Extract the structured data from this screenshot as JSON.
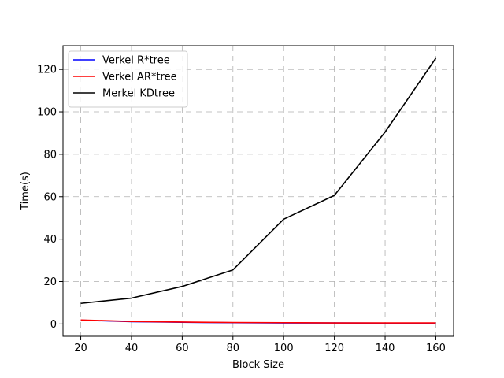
{
  "chart_data": {
    "type": "line",
    "title": "",
    "xlabel": "Block Size",
    "ylabel": "Time(s)",
    "x": [
      20,
      40,
      60,
      80,
      100,
      120,
      140,
      160
    ],
    "xlim": [
      13,
      167
    ],
    "ylim": [
      -5.8,
      131.2
    ],
    "xticks": [
      20,
      40,
      60,
      80,
      100,
      120,
      140,
      160
    ],
    "yticks": [
      0,
      20,
      40,
      60,
      80,
      100,
      120
    ],
    "grid": true,
    "legend_position": "top-left",
    "series": [
      {
        "name": "Verkel R*tree",
        "color": "#0000ff",
        "values": [
          1.8,
          1.1,
          0.8,
          0.6,
          0.5,
          0.5,
          0.4,
          0.4
        ]
      },
      {
        "name": "Verkel AR*tree",
        "color": "#ff0000",
        "values": [
          1.9,
          1.2,
          0.9,
          0.7,
          0.6,
          0.5,
          0.5,
          0.5
        ]
      },
      {
        "name": "Merkel KDtree",
        "color": "#000000",
        "values": [
          9.7,
          12.2,
          17.7,
          25.5,
          49.4,
          60.6,
          90.5,
          125.3
        ]
      }
    ]
  }
}
